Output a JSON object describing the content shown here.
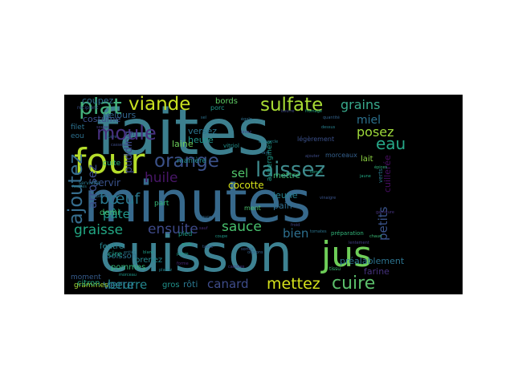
{
  "wordcloud": {
    "background": "#000000",
    "words": [
      {
        "text": "faites",
        "color": "#3c7f8e"
      },
      {
        "text": "minutes",
        "color": "#37698c"
      },
      {
        "text": "cuisson",
        "color": "#3d8292"
      },
      {
        "text": "four",
        "color": "#b6de2b"
      },
      {
        "text": "jus",
        "color": "#6ece58"
      },
      {
        "text": "plat",
        "color": "#44b07c"
      },
      {
        "text": "moule",
        "color": "#46307e"
      },
      {
        "text": "laissez",
        "color": "#3e8a8c"
      },
      {
        "text": "sulfate",
        "color": "#a8db34"
      },
      {
        "text": "viande",
        "color": "#c8e020"
      },
      {
        "text": "orange",
        "color": "#3b5189"
      },
      {
        "text": "ajoutez",
        "color": "#366d8e"
      },
      {
        "text": "cuire",
        "color": "#5bbf6b"
      },
      {
        "text": "eau",
        "color": "#26a788"
      },
      {
        "text": "mettez",
        "color": "#d6e21b"
      },
      {
        "text": "bœuf",
        "color": "#2a788e"
      },
      {
        "text": "grains",
        "color": "#38a98c"
      },
      {
        "text": "sauce",
        "color": "#48c16e"
      },
      {
        "text": "ensuite",
        "color": "#3e4a89"
      },
      {
        "text": "graisse",
        "color": "#22a784"
      },
      {
        "text": "huile",
        "color": "#481668"
      },
      {
        "text": "petits",
        "color": "#3a548c"
      },
      {
        "text": "arrosez",
        "color": "#3c4f8a"
      },
      {
        "text": "posez",
        "color": "#9ed93a"
      },
      {
        "text": "miel",
        "color": "#2c718e"
      },
      {
        "text": "bien",
        "color": "#2d6f8e"
      },
      {
        "text": "verre",
        "color": "#2f6b8e"
      },
      {
        "text": "canard",
        "color": "#3e4c8a"
      },
      {
        "text": "beurre",
        "color": "#24868e"
      },
      {
        "text": "pâte",
        "color": "#1f978b"
      },
      {
        "text": "sel",
        "color": "#50c46a"
      },
      {
        "text": "pudding",
        "color": "#3f4889"
      },
      {
        "text": "cocotte",
        "color": "#d5e21a"
      },
      {
        "text": "servir",
        "color": "#3a528b"
      },
      {
        "text": "coupez",
        "color": "#2e6e8e"
      },
      {
        "text": "costume",
        "color": "#3c508b"
      },
      {
        "text": "velours",
        "color": "#32658e"
      },
      {
        "text": "versez",
        "color": "#2b758e"
      },
      {
        "text": "heure",
        "color": "#1f958b"
      },
      {
        "text": "laine",
        "color": "#6ccd5a"
      },
      {
        "text": "bords",
        "color": "#5ec962"
      },
      {
        "text": "rôti",
        "color": "#2a768e"
      },
      {
        "text": "farine",
        "color": "#46327e"
      },
      {
        "text": "préalablement",
        "color": "#2c738e"
      },
      {
        "text": "cuillerée",
        "color": "#470e61"
      },
      {
        "text": "lait",
        "color": "#90d743"
      },
      {
        "text": "jeune",
        "color": "#26818e"
      },
      {
        "text": "pain",
        "color": "#2f6c8e"
      },
      {
        "text": "gros",
        "color": "#20928c"
      },
      {
        "text": "grammes",
        "color": "#a2da37"
      },
      {
        "text": "citron",
        "color": "#25ab82"
      },
      {
        "text": "pommes",
        "color": "#35b779"
      },
      {
        "text": "poisson",
        "color": "#2c728e"
      },
      {
        "text": "cire",
        "color": "#1fa187"
      },
      {
        "text": "prenez",
        "color": "#24878e"
      },
      {
        "text": "feutre",
        "color": "#25858e"
      },
      {
        "text": "demi",
        "color": "#42be71"
      },
      {
        "text": "cuite",
        "color": "#29af7f"
      },
      {
        "text": "mettre",
        "color": "#3fbc73"
      },
      {
        "text": "aubergines",
        "color": "#1e9b8a"
      },
      {
        "text": "filet",
        "color": "#2c718e"
      },
      {
        "text": "eou",
        "color": "#2d708e"
      },
      {
        "text": "moment",
        "color": "#365c8d"
      },
      {
        "text": "vitriol",
        "color": "#21918c"
      },
      {
        "text": "porc",
        "color": "#1f998a"
      },
      {
        "text": "légèrement",
        "color": "#3b518b"
      },
      {
        "text": "morceaux",
        "color": "#35608d"
      },
      {
        "text": "manière",
        "color": "#228b8d"
      },
      {
        "text": "pied",
        "color": "#1e9c89"
      },
      {
        "text": "part",
        "color": "#34b679"
      },
      {
        "text": "ment",
        "color": "#4ac16d"
      },
      {
        "text": "récipient",
        "color": "#3b528b"
      },
      {
        "text": "serviette",
        "color": "#29798e"
      },
      {
        "text": "préparation",
        "color": "#32b67a"
      },
      {
        "text": "verts",
        "color": "#2a788e"
      },
      {
        "text": "tissu",
        "color": "#3dbc74"
      },
      {
        "text": "beurre",
        "color": "#3e4989"
      },
      {
        "text": "soupe",
        "color": "#453781"
      },
      {
        "text": "sucre",
        "color": "#34618d"
      },
      {
        "text": "oignons",
        "color": "#33638d"
      },
      {
        "text": "tomates",
        "color": "#2b748e"
      },
      {
        "text": "carottes",
        "color": "#443a83"
      },
      {
        "text": "fromage",
        "color": "#25ab82"
      },
      {
        "text": "vinaigre",
        "color": "#3a548c"
      },
      {
        "text": "sauf",
        "color": "#472d7b"
      },
      {
        "text": "pierre",
        "color": "#1f9e89"
      },
      {
        "text": "couvercle",
        "color": "#26828e"
      },
      {
        "text": "jaune",
        "color": "#22a884"
      },
      {
        "text": "casserole",
        "color": "#3d4d8a"
      },
      {
        "text": "papier",
        "color": "#31688e"
      },
      {
        "text": "douce",
        "color": "#30698e"
      },
      {
        "text": "coupe",
        "color": "#1f9a8a"
      },
      {
        "text": "sel",
        "color": "#2d718e"
      },
      {
        "text": "chaud",
        "color": "#3bbb75"
      },
      {
        "text": "tasse",
        "color": "#375b8d"
      },
      {
        "text": "lard",
        "color": "#2e6d8e"
      },
      {
        "text": "œufs",
        "color": "#21a685"
      },
      {
        "text": "lentement",
        "color": "#423f85"
      },
      {
        "text": "feuilles",
        "color": "#287d8e"
      },
      {
        "text": "blanc",
        "color": "#1e9d89"
      },
      {
        "text": "dessus",
        "color": "#27808e"
      },
      {
        "text": "forme",
        "color": "#482878"
      },
      {
        "text": "lavez",
        "color": "#3f4788"
      },
      {
        "text": "temps",
        "color": "#22a785"
      },
      {
        "text": "froid",
        "color": "#404588"
      },
      {
        "text": "quantité",
        "color": "#33638d"
      },
      {
        "text": "égale",
        "color": "#2e6f8e"
      },
      {
        "text": "morceau",
        "color": "#1f988b"
      },
      {
        "text": "ajouter",
        "color": "#3e4c8a"
      },
      {
        "text": "placez",
        "color": "#25848e"
      },
      {
        "text": "sortez",
        "color": "#38588c"
      },
      {
        "text": "entier",
        "color": "#2a778e"
      },
      {
        "text": "garniture",
        "color": "#46337f"
      },
      {
        "text": "épices",
        "color": "#2fb47c"
      }
    ]
  }
}
